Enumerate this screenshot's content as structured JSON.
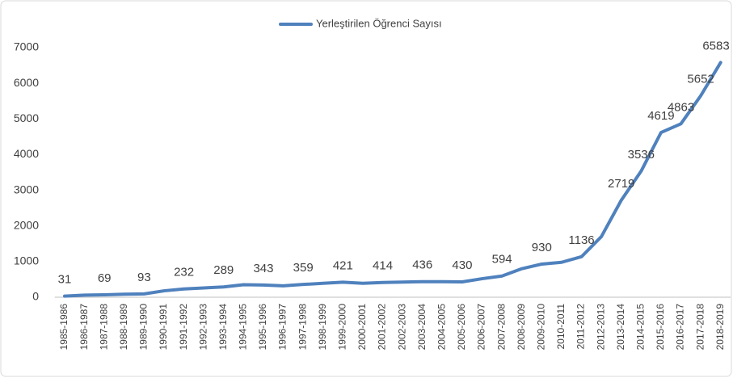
{
  "chart_data": {
    "type": "line",
    "legend": "top",
    "series": [
      {
        "name": "Yerleştirilen Öğrenci Sayısı",
        "color": "#4f81bd",
        "values": [
          31,
          60,
          69,
          85,
          93,
          180,
          232,
          260,
          289,
          350,
          343,
          320,
          359,
          390,
          421,
          390,
          414,
          425,
          436,
          435,
          430,
          520,
          594,
          800,
          930,
          980,
          1136,
          1700,
          2719,
          3536,
          4619,
          4863,
          5652,
          6583
        ],
        "value_labels": [
          31,
          null,
          69,
          null,
          93,
          null,
          232,
          null,
          289,
          null,
          343,
          null,
          359,
          null,
          421,
          null,
          414,
          null,
          436,
          null,
          430,
          null,
          594,
          null,
          930,
          null,
          1136,
          null,
          2719,
          3536,
          4619,
          4863,
          5652,
          6583
        ]
      }
    ],
    "categories": [
      "1985-1986",
      "1986-1987",
      "1987-1988",
      "1988-1989",
      "1989-1990",
      "1990-1991",
      "1991-1992",
      "1992-1993",
      "1993-1994",
      "1994-1995",
      "1995-1996",
      "1996-1997",
      "1997-1998",
      "1998-1999",
      "1999-2000",
      "2000-2001",
      "2001-2002",
      "2002-2003",
      "2003-2004",
      "2004-2005",
      "2005-2006",
      "2006-2007",
      "2007-2008",
      "2008-2009",
      "2009-2010",
      "2010-2011",
      "2011-2012",
      "2012-2013",
      "2013-2014",
      "2014-2015",
      "2015-2016",
      "2016-2017",
      "2017-2018",
      "2018-2019"
    ],
    "ylim": [
      0,
      7000
    ],
    "yticks": [
      0,
      1000,
      2000,
      3000,
      4000,
      5000,
      6000,
      7000
    ],
    "grid": false
  }
}
